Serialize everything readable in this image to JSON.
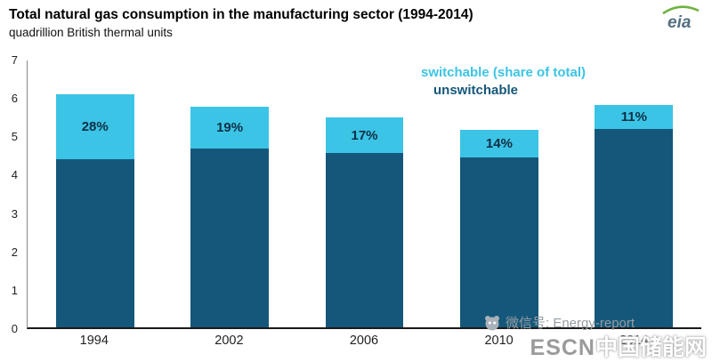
{
  "title": "Total natural gas consumption in the manufacturing sector (1994-2014)",
  "subtitle": "quadrillion British thermal units",
  "logo": {
    "text": "eia"
  },
  "legend": {
    "switchable_label": "switchable (share of total)",
    "unswitchable_label": "unswitchable"
  },
  "colors": {
    "unswitchable": "#15577a",
    "switchable": "#3cc4e6",
    "logo_swoosh": "#6cb33f",
    "logo_text": "#53707f"
  },
  "chart_data": {
    "type": "bar",
    "stacked": true,
    "title": "Total natural gas consumption in the manufacturing sector (1994-2014)",
    "ylabel": "quadrillion British thermal units",
    "categories": [
      "1994",
      "2002",
      "2006",
      "2010",
      "2014"
    ],
    "series": [
      {
        "name": "unswitchable",
        "values": [
          4.4,
          4.68,
          4.57,
          4.45,
          5.2
        ]
      },
      {
        "name": "switchable",
        "values": [
          1.72,
          1.1,
          0.93,
          0.73,
          0.64
        ]
      }
    ],
    "share_labels": [
      "28%",
      "19%",
      "17%",
      "14%",
      "11%"
    ],
    "ylim": [
      0,
      7
    ],
    "yticks": [
      0,
      1,
      2,
      3,
      4,
      5,
      6,
      7
    ],
    "grid": false,
    "legend_position": "top-right"
  },
  "watermark": {
    "wechat": "微信号: Energy-report",
    "escn_en": "ESCN",
    "escn_cn": "中国储能网"
  }
}
